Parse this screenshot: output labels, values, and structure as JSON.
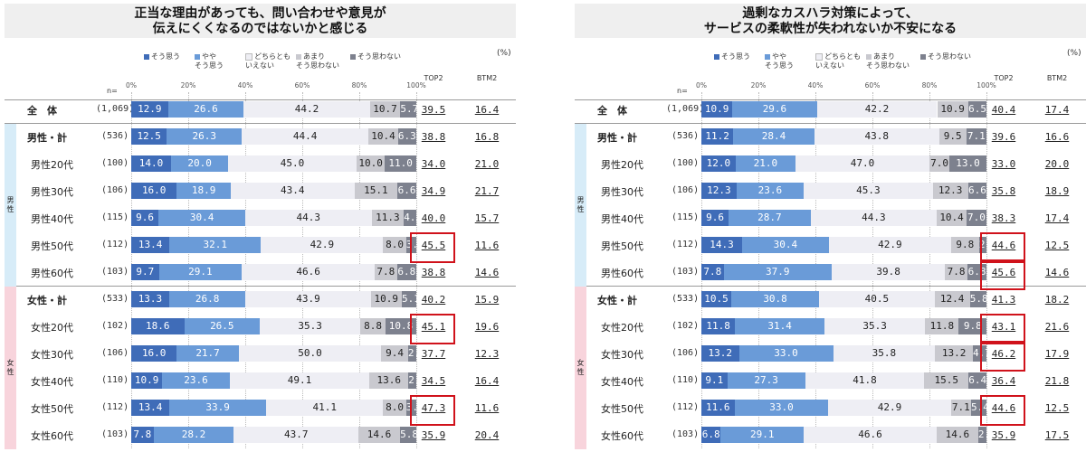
{
  "colors": {
    "c1": "#3f6cb8",
    "c2": "#6a9bd8",
    "c3": "#eeeef4",
    "c4": "#c9c9cf",
    "c5": "#7d818e",
    "male_group": "#d7ecf8",
    "female_group": "#f8d4dc",
    "highlight": "#d0121b"
  },
  "chart_data": [
    {
      "type": "bar",
      "title": "正当な理由があっても、問い合わせや意見が\n伝えにくくなるのではないかと感じる",
      "unit": "(%)",
      "n_label": "n=",
      "ticks": [
        "0%",
        "20%",
        "40%",
        "60%",
        "80%",
        "100%"
      ],
      "legend": [
        "そう思う",
        "やや\nそう思う",
        "どちらとも\nいえない",
        "あまり\nそう思わない",
        "そう思わない"
      ],
      "metric_headers": [
        "TOP2",
        "BTM2"
      ],
      "groups": [
        {
          "label": "男性",
          "start": 1,
          "end": 6
        },
        {
          "label": "女性",
          "start": 7,
          "end": 12
        }
      ],
      "rows": [
        {
          "label": "全　体",
          "n": "(1,069)",
          "values": [
            12.9,
            26.6,
            44.2,
            10.7,
            5.7
          ],
          "top2": "39.5",
          "btm2": "16.4",
          "hl": false
        },
        {
          "label": "男性・計",
          "n": "(536)",
          "values": [
            12.5,
            26.3,
            44.4,
            10.4,
            6.3
          ],
          "top2": "38.8",
          "btm2": "16.8",
          "hl": false
        },
        {
          "label": "男性20代",
          "n": "(100)",
          "values": [
            14.0,
            20.0,
            45.0,
            10.0,
            11.0
          ],
          "top2": "34.0",
          "btm2": "21.0",
          "hl": false
        },
        {
          "label": "男性30代",
          "n": "(106)",
          "values": [
            16.0,
            18.9,
            43.4,
            15.1,
            6.6
          ],
          "top2": "34.9",
          "btm2": "21.7",
          "hl": false
        },
        {
          "label": "男性40代",
          "n": "(115)",
          "values": [
            9.6,
            30.4,
            44.3,
            11.3,
            4.3
          ],
          "top2": "40.0",
          "btm2": "15.7",
          "hl": false
        },
        {
          "label": "男性50代",
          "n": "(112)",
          "values": [
            13.4,
            32.1,
            42.9,
            8.0,
            3.6
          ],
          "top2": "45.5",
          "btm2": "11.6",
          "hl": true
        },
        {
          "label": "男性60代",
          "n": "(103)",
          "values": [
            9.7,
            29.1,
            46.6,
            7.8,
            6.8
          ],
          "top2": "38.8",
          "btm2": "14.6",
          "hl": false
        },
        {
          "label": "女性・計",
          "n": "(533)",
          "values": [
            13.3,
            26.8,
            43.9,
            10.9,
            5.1
          ],
          "top2": "40.2",
          "btm2": "15.9",
          "hl": false
        },
        {
          "label": "女性20代",
          "n": "(102)",
          "values": [
            18.6,
            26.5,
            35.3,
            8.8,
            10.8
          ],
          "top2": "45.1",
          "btm2": "19.6",
          "hl": true
        },
        {
          "label": "女性30代",
          "n": "(106)",
          "values": [
            16.0,
            21.7,
            50.0,
            9.4,
            2.8
          ],
          "top2": "37.7",
          "btm2": "12.3",
          "hl": false
        },
        {
          "label": "女性40代",
          "n": "(110)",
          "values": [
            10.9,
            23.6,
            49.1,
            13.6,
            2.7
          ],
          "top2": "34.5",
          "btm2": "16.4",
          "hl": false
        },
        {
          "label": "女性50代",
          "n": "(112)",
          "values": [
            13.4,
            33.9,
            41.1,
            8.0,
            3.6
          ],
          "top2": "47.3",
          "btm2": "11.6",
          "hl": true
        },
        {
          "label": "女性60代",
          "n": "(103)",
          "values": [
            7.8,
            28.2,
            43.7,
            14.6,
            5.8
          ],
          "top2": "35.9",
          "btm2": "20.4",
          "hl": false
        }
      ]
    },
    {
      "type": "bar",
      "title": "過剰なカスハラ対策によって、\nサービスの柔軟性が失われないか不安になる",
      "unit": "(%)",
      "n_label": "n=",
      "ticks": [
        "0%",
        "20%",
        "40%",
        "60%",
        "80%",
        "100%"
      ],
      "legend": [
        "そう思う",
        "やや\nそう思う",
        "どちらとも\nいえない",
        "あまり\nそう思わない",
        "そう思わない"
      ],
      "metric_headers": [
        "TOP2",
        "BTM2"
      ],
      "groups": [
        {
          "label": "男性",
          "start": 1,
          "end": 6
        },
        {
          "label": "女性",
          "start": 7,
          "end": 12
        }
      ],
      "rows": [
        {
          "label": "全　体",
          "n": "(1,069)",
          "values": [
            10.9,
            29.6,
            42.2,
            10.9,
            6.5
          ],
          "top2": "40.4",
          "btm2": "17.4",
          "hl": false
        },
        {
          "label": "男性・計",
          "n": "(536)",
          "values": [
            11.2,
            28.4,
            43.8,
            9.5,
            7.1
          ],
          "top2": "39.6",
          "btm2": "16.6",
          "hl": false
        },
        {
          "label": "男性20代",
          "n": "(100)",
          "values": [
            12.0,
            21.0,
            47.0,
            7.0,
            13.0
          ],
          "top2": "33.0",
          "btm2": "20.0",
          "hl": false
        },
        {
          "label": "男性30代",
          "n": "(106)",
          "values": [
            12.3,
            23.6,
            45.3,
            12.3,
            6.6
          ],
          "top2": "35.8",
          "btm2": "18.9",
          "hl": false
        },
        {
          "label": "男性40代",
          "n": "(115)",
          "values": [
            9.6,
            28.7,
            44.3,
            10.4,
            7.0
          ],
          "top2": "38.3",
          "btm2": "17.4",
          "hl": false
        },
        {
          "label": "男性50代",
          "n": "(112)",
          "values": [
            14.3,
            30.4,
            42.9,
            9.8,
            2.7
          ],
          "top2": "44.6",
          "btm2": "12.5",
          "hl": true
        },
        {
          "label": "男性60代",
          "n": "(103)",
          "values": [
            7.8,
            37.9,
            39.8,
            7.8,
            6.8
          ],
          "top2": "45.6",
          "btm2": "14.6",
          "hl": true
        },
        {
          "label": "女性・計",
          "n": "(533)",
          "values": [
            10.5,
            30.8,
            40.5,
            12.4,
            5.8
          ],
          "top2": "41.3",
          "btm2": "18.2",
          "hl": false
        },
        {
          "label": "女性20代",
          "n": "(102)",
          "values": [
            11.8,
            31.4,
            35.3,
            11.8,
            9.8
          ],
          "top2": "43.1",
          "btm2": "21.6",
          "hl": true
        },
        {
          "label": "女性30代",
          "n": "(106)",
          "values": [
            13.2,
            33.0,
            35.8,
            13.2,
            4.7
          ],
          "top2": "46.2",
          "btm2": "17.9",
          "hl": true
        },
        {
          "label": "女性40代",
          "n": "(110)",
          "values": [
            9.1,
            27.3,
            41.8,
            15.5,
            6.4
          ],
          "top2": "36.4",
          "btm2": "21.8",
          "hl": false
        },
        {
          "label": "女性50代",
          "n": "(112)",
          "values": [
            11.6,
            33.0,
            42.9,
            7.1,
            5.4
          ],
          "top2": "44.6",
          "btm2": "12.5",
          "hl": true
        },
        {
          "label": "女性60代",
          "n": "(103)",
          "values": [
            6.8,
            29.1,
            46.6,
            14.6,
            2.9
          ],
          "top2": "35.9",
          "btm2": "17.5",
          "hl": false
        }
      ]
    }
  ]
}
